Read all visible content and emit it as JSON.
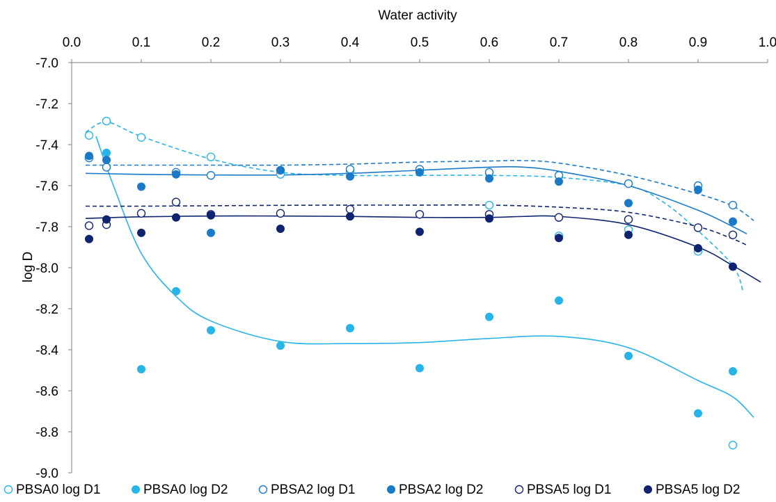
{
  "chart_data": {
    "type": "scatter",
    "xlabel": "Water activity",
    "ylabel": "log D",
    "xlim": [
      0,
      1
    ],
    "ylim": [
      -9.0,
      -7.0
    ],
    "x_ticks": [
      "0.0",
      "0.1",
      "0.2",
      "0.3",
      "0.4",
      "0.5",
      "0.6",
      "0.7",
      "0.8",
      "0.9",
      "1.0"
    ],
    "y_ticks": [
      "-7.0",
      "-7.2",
      "-7.4",
      "-7.6",
      "-7.8",
      "-8.0",
      "-8.2",
      "-8.4",
      "-8.6",
      "-8.8",
      "-9.0"
    ],
    "x_axis_position": "top",
    "legend_position": "bottom",
    "grid": false,
    "series": [
      {
        "name": "PBSA0 log D1",
        "marker": "open",
        "color": "#27b4e8",
        "x": [
          0.025,
          0.05,
          0.1,
          0.15,
          0.2,
          0.3,
          0.4,
          0.5,
          0.6,
          0.7,
          0.8,
          0.9,
          0.95
        ],
        "y": [
          -7.355,
          -7.285,
          -7.365,
          -7.54,
          -7.46,
          -7.545,
          -7.53,
          -7.53,
          -7.695,
          -7.845,
          -7.815,
          -7.92,
          -8.865
        ]
      },
      {
        "name": "PBSA0 log D2",
        "marker": "filled",
        "color": "#27b4e8",
        "x": [
          0.05,
          0.1,
          0.15,
          0.2,
          0.3,
          0.4,
          0.5,
          0.6,
          0.7,
          0.8,
          0.9,
          0.95
        ],
        "y": [
          -7.44,
          -8.495,
          -8.115,
          -8.305,
          -8.38,
          -8.295,
          -8.49,
          -8.24,
          -8.16,
          -8.43,
          -8.71,
          -8.505
        ]
      },
      {
        "name": "PBSA2 log D1",
        "marker": "open",
        "color": "#1a7ac8",
        "x": [
          0.025,
          0.05,
          0.15,
          0.2,
          0.3,
          0.4,
          0.5,
          0.6,
          0.7,
          0.8,
          0.9,
          0.95
        ],
        "y": [
          -7.465,
          -7.51,
          -7.535,
          -7.55,
          -7.525,
          -7.52,
          -7.52,
          -7.535,
          -7.55,
          -7.59,
          -7.6,
          -7.695
        ]
      },
      {
        "name": "PBSA2 log D2",
        "marker": "filled",
        "color": "#1a7ac8",
        "x": [
          0.025,
          0.05,
          0.1,
          0.15,
          0.2,
          0.3,
          0.4,
          0.5,
          0.6,
          0.7,
          0.8,
          0.9,
          0.95
        ],
        "y": [
          -7.455,
          -7.475,
          -7.605,
          -7.545,
          -7.83,
          -7.525,
          -7.555,
          -7.535,
          -7.565,
          -7.58,
          -7.685,
          -7.62,
          -7.775
        ]
      },
      {
        "name": "PBSA5 log D1",
        "marker": "open",
        "color": "#0e2470",
        "x": [
          0.025,
          0.05,
          0.1,
          0.15,
          0.2,
          0.3,
          0.4,
          0.5,
          0.6,
          0.7,
          0.8,
          0.9,
          0.95
        ],
        "y": [
          -7.795,
          -7.79,
          -7.735,
          -7.68,
          -7.74,
          -7.735,
          -7.715,
          -7.74,
          -7.74,
          -7.755,
          -7.765,
          -7.805,
          -7.84
        ]
      },
      {
        "name": "PBSA5 log D2",
        "marker": "filled",
        "color": "#0e2470",
        "x": [
          0.025,
          0.05,
          0.1,
          0.15,
          0.2,
          0.3,
          0.4,
          0.5,
          0.6,
          0.7,
          0.8,
          0.9,
          0.95
        ],
        "y": [
          -7.86,
          -7.765,
          -7.83,
          -7.755,
          -7.745,
          -7.81,
          -7.75,
          -7.825,
          -7.76,
          -7.855,
          -7.84,
          -7.905,
          -7.995
        ]
      }
    ],
    "trendlines": [
      {
        "style": "dashed",
        "color": "#27b4e8",
        "x": [
          0.02,
          0.05,
          0.1,
          0.2,
          0.3,
          0.4,
          0.5,
          0.6,
          0.7,
          0.8,
          0.85,
          0.9,
          0.95,
          0.965
        ],
        "y": [
          -7.34,
          -7.29,
          -7.36,
          -7.47,
          -7.535,
          -7.55,
          -7.55,
          -7.55,
          -7.56,
          -7.6,
          -7.68,
          -7.82,
          -7.99,
          -8.12
        ]
      },
      {
        "style": "solid",
        "color": "#27b4e8",
        "x": [
          0.035,
          0.06,
          0.1,
          0.15,
          0.2,
          0.3,
          0.4,
          0.5,
          0.6,
          0.7,
          0.8,
          0.9,
          0.95,
          0.98
        ],
        "y": [
          -7.36,
          -7.6,
          -7.93,
          -8.14,
          -8.26,
          -8.36,
          -8.37,
          -8.365,
          -8.345,
          -8.335,
          -8.39,
          -8.55,
          -8.63,
          -8.73
        ]
      },
      {
        "style": "dashed",
        "color": "#1a7ac8",
        "x": [
          0.02,
          0.1,
          0.2,
          0.3,
          0.4,
          0.5,
          0.6,
          0.65,
          0.7,
          0.8,
          0.9,
          0.95,
          0.98
        ],
        "y": [
          -7.5,
          -7.5,
          -7.5,
          -7.5,
          -7.495,
          -7.485,
          -7.48,
          -7.478,
          -7.49,
          -7.55,
          -7.64,
          -7.7,
          -7.77
        ]
      },
      {
        "style": "solid",
        "color": "#1a7ac8",
        "x": [
          0.02,
          0.1,
          0.2,
          0.3,
          0.4,
          0.5,
          0.6,
          0.65,
          0.7,
          0.8,
          0.9,
          0.95,
          0.97
        ],
        "y": [
          -7.54,
          -7.545,
          -7.548,
          -7.548,
          -7.54,
          -7.525,
          -7.51,
          -7.51,
          -7.53,
          -7.6,
          -7.72,
          -7.8,
          -7.835
        ]
      },
      {
        "style": "dashed",
        "color": "#0e2470",
        "x": [
          0.02,
          0.1,
          0.2,
          0.3,
          0.4,
          0.5,
          0.6,
          0.7,
          0.8,
          0.9,
          0.95,
          0.97
        ],
        "y": [
          -7.7,
          -7.7,
          -7.698,
          -7.696,
          -7.695,
          -7.695,
          -7.695,
          -7.705,
          -7.73,
          -7.8,
          -7.86,
          -7.89
        ]
      },
      {
        "style": "solid",
        "color": "#0e2470",
        "x": [
          0.02,
          0.1,
          0.2,
          0.3,
          0.4,
          0.5,
          0.6,
          0.65,
          0.7,
          0.8,
          0.9,
          0.95,
          0.99
        ],
        "y": [
          -7.76,
          -7.752,
          -7.748,
          -7.748,
          -7.75,
          -7.755,
          -7.755,
          -7.75,
          -7.75,
          -7.79,
          -7.9,
          -7.99,
          -8.07
        ]
      }
    ]
  }
}
